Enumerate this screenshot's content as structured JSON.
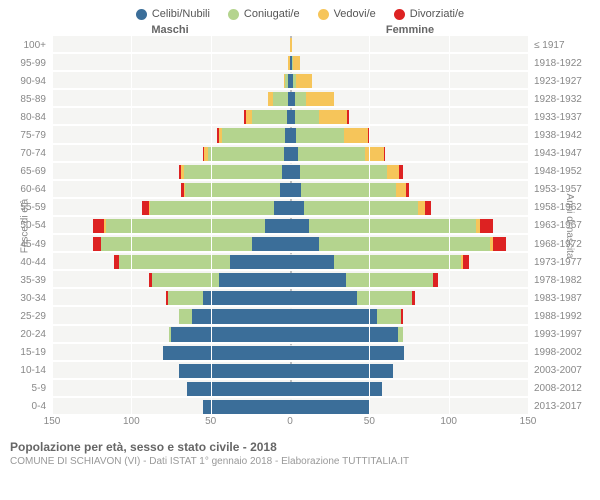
{
  "legend": [
    {
      "label": "Celibi/Nubili",
      "color": "#3b6e99"
    },
    {
      "label": "Coniugati/e",
      "color": "#b4d48e"
    },
    {
      "label": "Vedovi/e",
      "color": "#f6c55a"
    },
    {
      "label": "Divorziati/e",
      "color": "#d22"
    }
  ],
  "headers": {
    "male": "Maschi",
    "female": "Femmine"
  },
  "axis_labels": {
    "left": "Fasce di età",
    "right": "Anni di nascita"
  },
  "x": {
    "min": -150,
    "max": 150,
    "ticks": [
      -150,
      -100,
      -50,
      0,
      50,
      100,
      150
    ],
    "labels": [
      "150",
      "100",
      "50",
      "0",
      "50",
      "100",
      "150"
    ]
  },
  "segment_colors": [
    "#3b6e99",
    "#b4d48e",
    "#f6c55a",
    "#d22"
  ],
  "age_groups": [
    {
      "age": "100+",
      "birth": "≤ 1917",
      "m": [
        0,
        0,
        0,
        0
      ],
      "f": [
        0,
        0,
        1,
        0
      ]
    },
    {
      "age": "95-99",
      "birth": "1918-1922",
      "m": [
        0,
        0,
        1,
        0
      ],
      "f": [
        1,
        1,
        4,
        0
      ]
    },
    {
      "age": "90-94",
      "birth": "1923-1927",
      "m": [
        1,
        2,
        1,
        0
      ],
      "f": [
        2,
        2,
        10,
        0
      ]
    },
    {
      "age": "85-89",
      "birth": "1928-1932",
      "m": [
        1,
        10,
        3,
        0
      ],
      "f": [
        3,
        7,
        18,
        0
      ]
    },
    {
      "age": "80-84",
      "birth": "1933-1937",
      "m": [
        2,
        22,
        4,
        1
      ],
      "f": [
        3,
        15,
        18,
        1
      ]
    },
    {
      "age": "75-79",
      "birth": "1938-1942",
      "m": [
        3,
        40,
        2,
        1
      ],
      "f": [
        4,
        30,
        15,
        1
      ]
    },
    {
      "age": "70-74",
      "birth": "1943-1947",
      "m": [
        4,
        48,
        2,
        1
      ],
      "f": [
        5,
        42,
        12,
        1
      ]
    },
    {
      "age": "65-69",
      "birth": "1948-1952",
      "m": [
        5,
        62,
        2,
        1
      ],
      "f": [
        6,
        55,
        8,
        2
      ]
    },
    {
      "age": "60-64",
      "birth": "1953-1957",
      "m": [
        6,
        60,
        1,
        2
      ],
      "f": [
        7,
        60,
        6,
        2
      ]
    },
    {
      "age": "55-59",
      "birth": "1958-1962",
      "m": [
        10,
        78,
        1,
        4
      ],
      "f": [
        9,
        72,
        4,
        4
      ]
    },
    {
      "age": "50-54",
      "birth": "1963-1967",
      "m": [
        16,
        100,
        1,
        7
      ],
      "f": [
        12,
        105,
        3,
        8
      ]
    },
    {
      "age": "45-49",
      "birth": "1968-1972",
      "m": [
        24,
        95,
        0,
        5
      ],
      "f": [
        18,
        108,
        2,
        8
      ]
    },
    {
      "age": "40-44",
      "birth": "1973-1977",
      "m": [
        38,
        70,
        0,
        3
      ],
      "f": [
        28,
        80,
        1,
        4
      ]
    },
    {
      "age": "35-39",
      "birth": "1978-1982",
      "m": [
        45,
        42,
        0,
        2
      ],
      "f": [
        35,
        55,
        0,
        3
      ]
    },
    {
      "age": "30-34",
      "birth": "1983-1987",
      "m": [
        55,
        22,
        0,
        1
      ],
      "f": [
        42,
        35,
        0,
        2
      ]
    },
    {
      "age": "25-29",
      "birth": "1988-1992",
      "m": [
        62,
        8,
        0,
        0
      ],
      "f": [
        55,
        15,
        0,
        1
      ]
    },
    {
      "age": "20-24",
      "birth": "1993-1997",
      "m": [
        75,
        1,
        0,
        0
      ],
      "f": [
        68,
        3,
        0,
        0
      ]
    },
    {
      "age": "15-19",
      "birth": "1998-2002",
      "m": [
        80,
        0,
        0,
        0
      ],
      "f": [
        72,
        0,
        0,
        0
      ]
    },
    {
      "age": "10-14",
      "birth": "2003-2007",
      "m": [
        70,
        0,
        0,
        0
      ],
      "f": [
        65,
        0,
        0,
        0
      ]
    },
    {
      "age": "5-9",
      "birth": "2008-2012",
      "m": [
        65,
        0,
        0,
        0
      ],
      "f": [
        58,
        0,
        0,
        0
      ]
    },
    {
      "age": "0-4",
      "birth": "2013-2017",
      "m": [
        55,
        0,
        0,
        0
      ],
      "f": [
        50,
        0,
        0,
        0
      ]
    }
  ],
  "footer": {
    "title": "Popolazione per età, sesso e stato civile - 2018",
    "subtitle": "COMUNE DI SCHIAVON (VI) - Dati ISTAT 1° gennaio 2018 - Elaborazione TUTTITALIA.IT"
  },
  "style": {
    "plot_bg": "#f5f5f3",
    "grid_color": "#ffffff"
  }
}
